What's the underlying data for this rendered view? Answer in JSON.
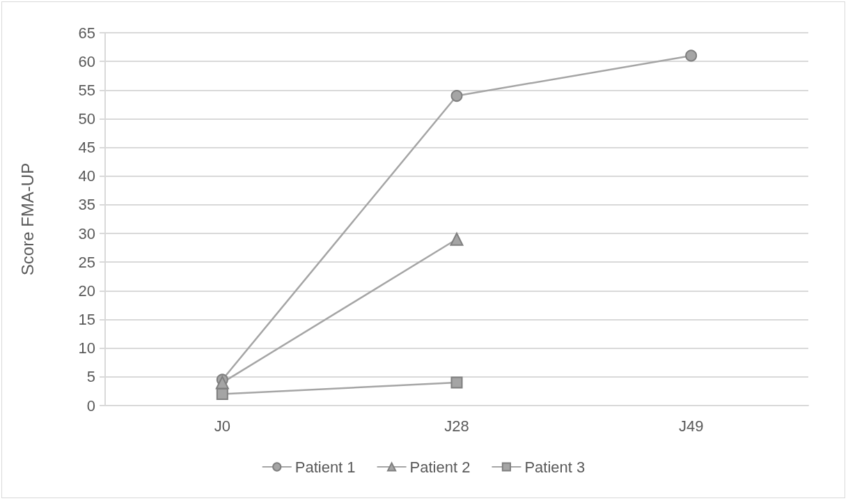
{
  "chart_data": {
    "type": "line",
    "ylabel": "Score FMA-UP",
    "categories": [
      "J0",
      "J28",
      "J49"
    ],
    "series": [
      {
        "name": "Patient 1",
        "color": "#a5a5a5",
        "marker": "circle",
        "values": [
          4.5,
          54,
          61
        ]
      },
      {
        "name": "Patient 2",
        "color": "#a5a5a5",
        "marker": "triangle",
        "values": [
          4,
          29,
          null
        ]
      },
      {
        "name": "Patient 3",
        "color": "#a5a5a5",
        "marker": "square",
        "values": [
          2,
          4,
          null
        ]
      }
    ],
    "ylim": [
      0,
      65
    ],
    "yticks": [
      0,
      5,
      10,
      15,
      20,
      25,
      30,
      35,
      40,
      45,
      50,
      55,
      60,
      65
    ],
    "grid": "y",
    "legend": "bottom",
    "line_style": "solid"
  }
}
